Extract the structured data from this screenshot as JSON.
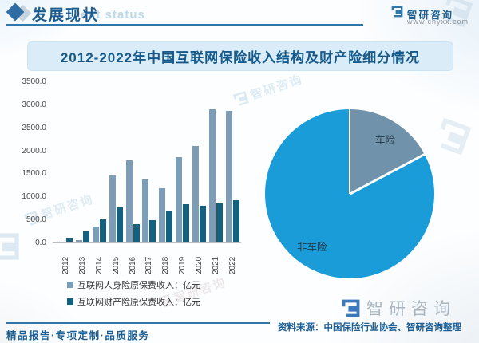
{
  "header": {
    "title": "发展现状",
    "watermark_en": "ent status",
    "brand_name": "智研咨询",
    "brand_url": "www.chyxx.com"
  },
  "banner": {
    "title": "2012-2022年中国互联网保险收入结构及财产险细分情况"
  },
  "watermark": "智研咨询",
  "chart_data": [
    {
      "type": "bar",
      "title": "2012-2022年中国互联网保险收入结构",
      "categories": [
        "2012",
        "2013",
        "2014",
        "2015",
        "2016",
        "2017",
        "2018",
        "2019",
        "2020",
        "2021",
        "2022"
      ],
      "series": [
        {
          "name": "互联网人身险原保费收入：亿元",
          "color": "#7d9cb5",
          "values": [
            10.3,
            54.5,
            353.2,
            1465.6,
            1796.7,
            1383.2,
            1193.2,
            1857.7,
            2110.8,
            2916.7,
            2876.0
          ]
        },
        {
          "name": "互联网财产险原保费收入：亿元",
          "color": "#15607f",
          "values": [
            106.0,
            236.0,
            505.7,
            768.4,
            402.8,
            493.5,
            695.2,
            838.6,
            797.9,
            862.0,
            916.5
          ]
        }
      ],
      "ylabel": "",
      "xlabel": "",
      "ylim": [
        0,
        3500
      ],
      "ytick_step": 500,
      "ytick_labels": [
        "0.0",
        "500.0",
        "1000.0",
        "1500.0",
        "2000.0",
        "2500.0",
        "3000.0",
        "3500.0"
      ],
      "grid": false,
      "legend_position": "bottom-left"
    },
    {
      "type": "pie",
      "title": "财产险细分情况",
      "start_angle_deg": 0,
      "slices": [
        {
          "label": "车险",
          "value_pct": 17.2,
          "color": "#7093ab"
        },
        {
          "label": "非车险",
          "value_pct": 82.8,
          "color": "#199cd8"
        }
      ]
    }
  ],
  "footer": {
    "tagline": "精品报告·专项定制·品质服务",
    "brand_name": "智研咨询",
    "source": "资料来源：中国保险行业协会、智研咨询整理"
  }
}
